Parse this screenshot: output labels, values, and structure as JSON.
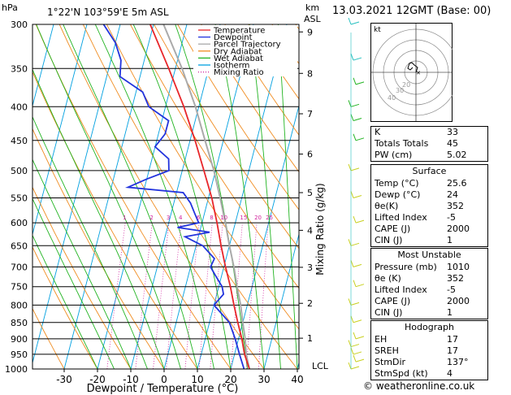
{
  "header": {
    "units_p": "hPa",
    "location": "1°22'N  103°59'E  5m  ASL",
    "units_km": "km",
    "units_asl": "ASL",
    "datetime": "13.03.2021  12GMT  (Base: 00)"
  },
  "chart_data": {
    "type": "line",
    "xlabel": "Dewpoint / Temperature (°C)",
    "ylabel_right": "Mixing Ratio (g/kg)",
    "x_ticks": [
      -30,
      -20,
      -10,
      0,
      10,
      20,
      30,
      40
    ],
    "p_levels": [
      300,
      350,
      400,
      450,
      500,
      550,
      600,
      650,
      700,
      750,
      800,
      850,
      900,
      950,
      1000
    ],
    "km_ticks": [
      {
        "km": 1,
        "p": 898
      },
      {
        "km": 2,
        "p": 795
      },
      {
        "km": 3,
        "p": 701
      },
      {
        "km": 4,
        "p": 616
      },
      {
        "km": 5,
        "p": 540
      },
      {
        "km": 6,
        "p": 472
      },
      {
        "km": 7,
        "p": 410
      },
      {
        "km": 8,
        "p": 356
      },
      {
        "km": 9,
        "p": 308
      }
    ],
    "lcl_label": "LCL",
    "mixing_ratio_labels": [
      "1",
      "2",
      "3",
      "4",
      "6",
      "8",
      "10",
      "15",
      "20",
      "25"
    ],
    "legend": [
      "Temperature",
      "Dewpoint",
      "Parcel Trajectory",
      "Dry Adiabat",
      "Wet Adiabat",
      "Isotherm",
      "Mixing Ratio"
    ],
    "series": [
      {
        "name": "Temperature",
        "color": "#e8262a",
        "points": [
          [
            1000,
            25.6
          ],
          [
            950,
            23.0
          ],
          [
            900,
            21.0
          ],
          [
            850,
            18.5
          ],
          [
            800,
            16.0
          ],
          [
            750,
            13.5
          ],
          [
            700,
            10.5
          ],
          [
            650,
            7.5
          ],
          [
            600,
            4.5
          ],
          [
            550,
            1.0
          ],
          [
            500,
            -3.5
          ],
          [
            450,
            -8.5
          ],
          [
            400,
            -14.5
          ],
          [
            350,
            -22.0
          ],
          [
            300,
            -31.0
          ]
        ]
      },
      {
        "name": "Dewpoint",
        "color": "#2233dd",
        "points": [
          [
            1000,
            24.0
          ],
          [
            950,
            21.5
          ],
          [
            900,
            19.0
          ],
          [
            850,
            16.0
          ],
          [
            800,
            10.0
          ],
          [
            770,
            12.0
          ],
          [
            750,
            11.0
          ],
          [
            720,
            8.0
          ],
          [
            700,
            6.0
          ],
          [
            680,
            6.5
          ],
          [
            650,
            2.0
          ],
          [
            630,
            -4.0
          ],
          [
            620,
            3.0
          ],
          [
            610,
            -7.0
          ],
          [
            600,
            -1.0
          ],
          [
            580,
            -3.0
          ],
          [
            560,
            -5.0
          ],
          [
            540,
            -8.0
          ],
          [
            530,
            -25.0
          ],
          [
            515,
            -20.0
          ],
          [
            500,
            -14.0
          ],
          [
            480,
            -15.0
          ],
          [
            460,
            -20.0
          ],
          [
            440,
            -18.0
          ],
          [
            420,
            -18.0
          ],
          [
            400,
            -25.0
          ],
          [
            380,
            -28.0
          ],
          [
            360,
            -36.0
          ],
          [
            340,
            -37.0
          ],
          [
            320,
            -40.0
          ],
          [
            300,
            -45.0
          ]
        ]
      },
      {
        "name": "Parcel Trajectory",
        "color": "#aaaaaa",
        "points": [
          [
            1000,
            25.6
          ],
          [
            950,
            23.5
          ],
          [
            900,
            22.0
          ],
          [
            850,
            20.0
          ],
          [
            800,
            18.0
          ],
          [
            750,
            15.5
          ],
          [
            700,
            13.0
          ],
          [
            650,
            10.0
          ],
          [
            600,
            7.0
          ],
          [
            550,
            3.5
          ],
          [
            500,
            -0.5
          ],
          [
            450,
            -5.5
          ],
          [
            400,
            -11.0
          ],
          [
            350,
            -18.0
          ],
          [
            300,
            -27.0
          ]
        ]
      }
    ]
  },
  "hodograph": {
    "unit_label": "kt",
    "ring_labels": [
      "20",
      "30",
      "40"
    ]
  },
  "indices": [
    {
      "label": "K",
      "value": "33"
    },
    {
      "label": "Totals Totals",
      "value": "45"
    },
    {
      "label": "PW (cm)",
      "value": "5.02"
    }
  ],
  "surface": {
    "title": "Surface",
    "rows": [
      {
        "label": "Temp (°C)",
        "value": "25.6"
      },
      {
        "label": "Dewp (°C)",
        "value": "24"
      },
      {
        "label": "θe(K)",
        "value": "352"
      },
      {
        "label": "Lifted Index",
        "value": "-5"
      },
      {
        "label": "CAPE (J)",
        "value": "2000"
      },
      {
        "label": "CIN (J)",
        "value": "1"
      }
    ]
  },
  "most_unstable": {
    "title": "Most Unstable",
    "rows": [
      {
        "label": "Pressure (mb)",
        "value": "1010"
      },
      {
        "label": "θe (K)",
        "value": "352"
      },
      {
        "label": "Lifted Index",
        "value": "-5"
      },
      {
        "label": "CAPE (J)",
        "value": "2000"
      },
      {
        "label": "CIN (J)",
        "value": "1"
      }
    ]
  },
  "hodograph_table": {
    "title": "Hodograph",
    "rows": [
      {
        "label": "EH",
        "value": "17"
      },
      {
        "label": "SREH",
        "value": "17"
      },
      {
        "label": "StmDir",
        "value": "137°"
      },
      {
        "label": "StmSpd (kt)",
        "value": "4"
      }
    ]
  },
  "footer": "© weatheronline.co.uk"
}
